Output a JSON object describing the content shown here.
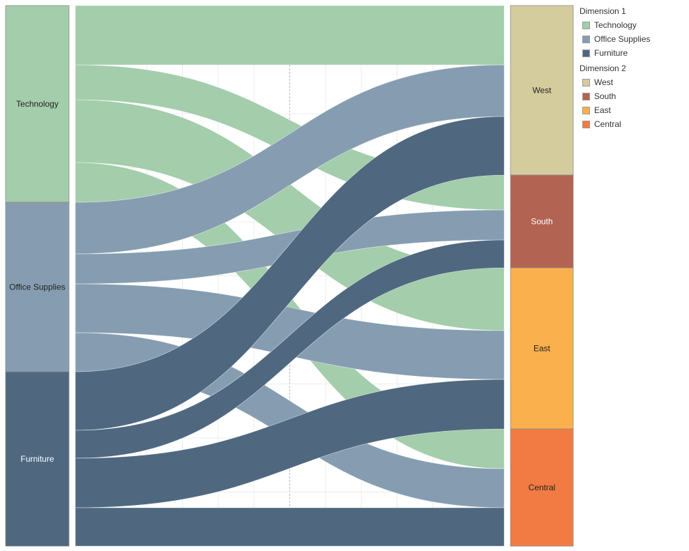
{
  "chart_data": {
    "type": "sankey",
    "title": "",
    "legend_position": "right",
    "grid": true,
    "dimension1": {
      "title": "Dimension 1",
      "nodes": [
        {
          "name": "Technology",
          "color": "#a3cdab",
          "label_color": "#222222"
        },
        {
          "name": "Office Supplies",
          "color": "#869db1",
          "label_color": "#222222"
        },
        {
          "name": "Furniture",
          "color": "#4f6880",
          "label_color": "#ffffff"
        }
      ]
    },
    "dimension2": {
      "title": "Dimension 2",
      "nodes": [
        {
          "name": "West",
          "color": "#d5cc9e",
          "label_color": "#222222"
        },
        {
          "name": "South",
          "color": "#b26352",
          "label_color": "#ffffff"
        },
        {
          "name": "East",
          "color": "#f9b04d",
          "label_color": "#222222"
        },
        {
          "name": "Central",
          "color": "#f27b43",
          "label_color": "#222222"
        }
      ]
    },
    "links": [
      {
        "source": "Technology",
        "target": "West",
        "value": 85
      },
      {
        "source": "Technology",
        "target": "South",
        "value": 50
      },
      {
        "source": "Technology",
        "target": "East",
        "value": 90
      },
      {
        "source": "Technology",
        "target": "Central",
        "value": 57
      },
      {
        "source": "Office Supplies",
        "target": "West",
        "value": 74
      },
      {
        "source": "Office Supplies",
        "target": "South",
        "value": 43
      },
      {
        "source": "Office Supplies",
        "target": "East",
        "value": 70
      },
      {
        "source": "Office Supplies",
        "target": "Central",
        "value": 56
      },
      {
        "source": "Furniture",
        "target": "West",
        "value": 84
      },
      {
        "source": "Furniture",
        "target": "South",
        "value": 40
      },
      {
        "source": "Furniture",
        "target": "East",
        "value": 71
      },
      {
        "source": "Furniture",
        "target": "Central",
        "value": 55
      }
    ]
  },
  "legend": {
    "groups": [
      {
        "title": "Dimension 1",
        "items": [
          {
            "label": "Technology",
            "color": "#a3cdab"
          },
          {
            "label": "Office Supplies",
            "color": "#869db1"
          },
          {
            "label": "Furniture",
            "color": "#4f6880"
          }
        ]
      },
      {
        "title": "Dimension 2",
        "items": [
          {
            "label": "West",
            "color": "#d5cc9e"
          },
          {
            "label": "South",
            "color": "#b26352"
          },
          {
            "label": "East",
            "color": "#f9b04d"
          },
          {
            "label": "Central",
            "color": "#f27b43"
          }
        ]
      }
    ]
  }
}
